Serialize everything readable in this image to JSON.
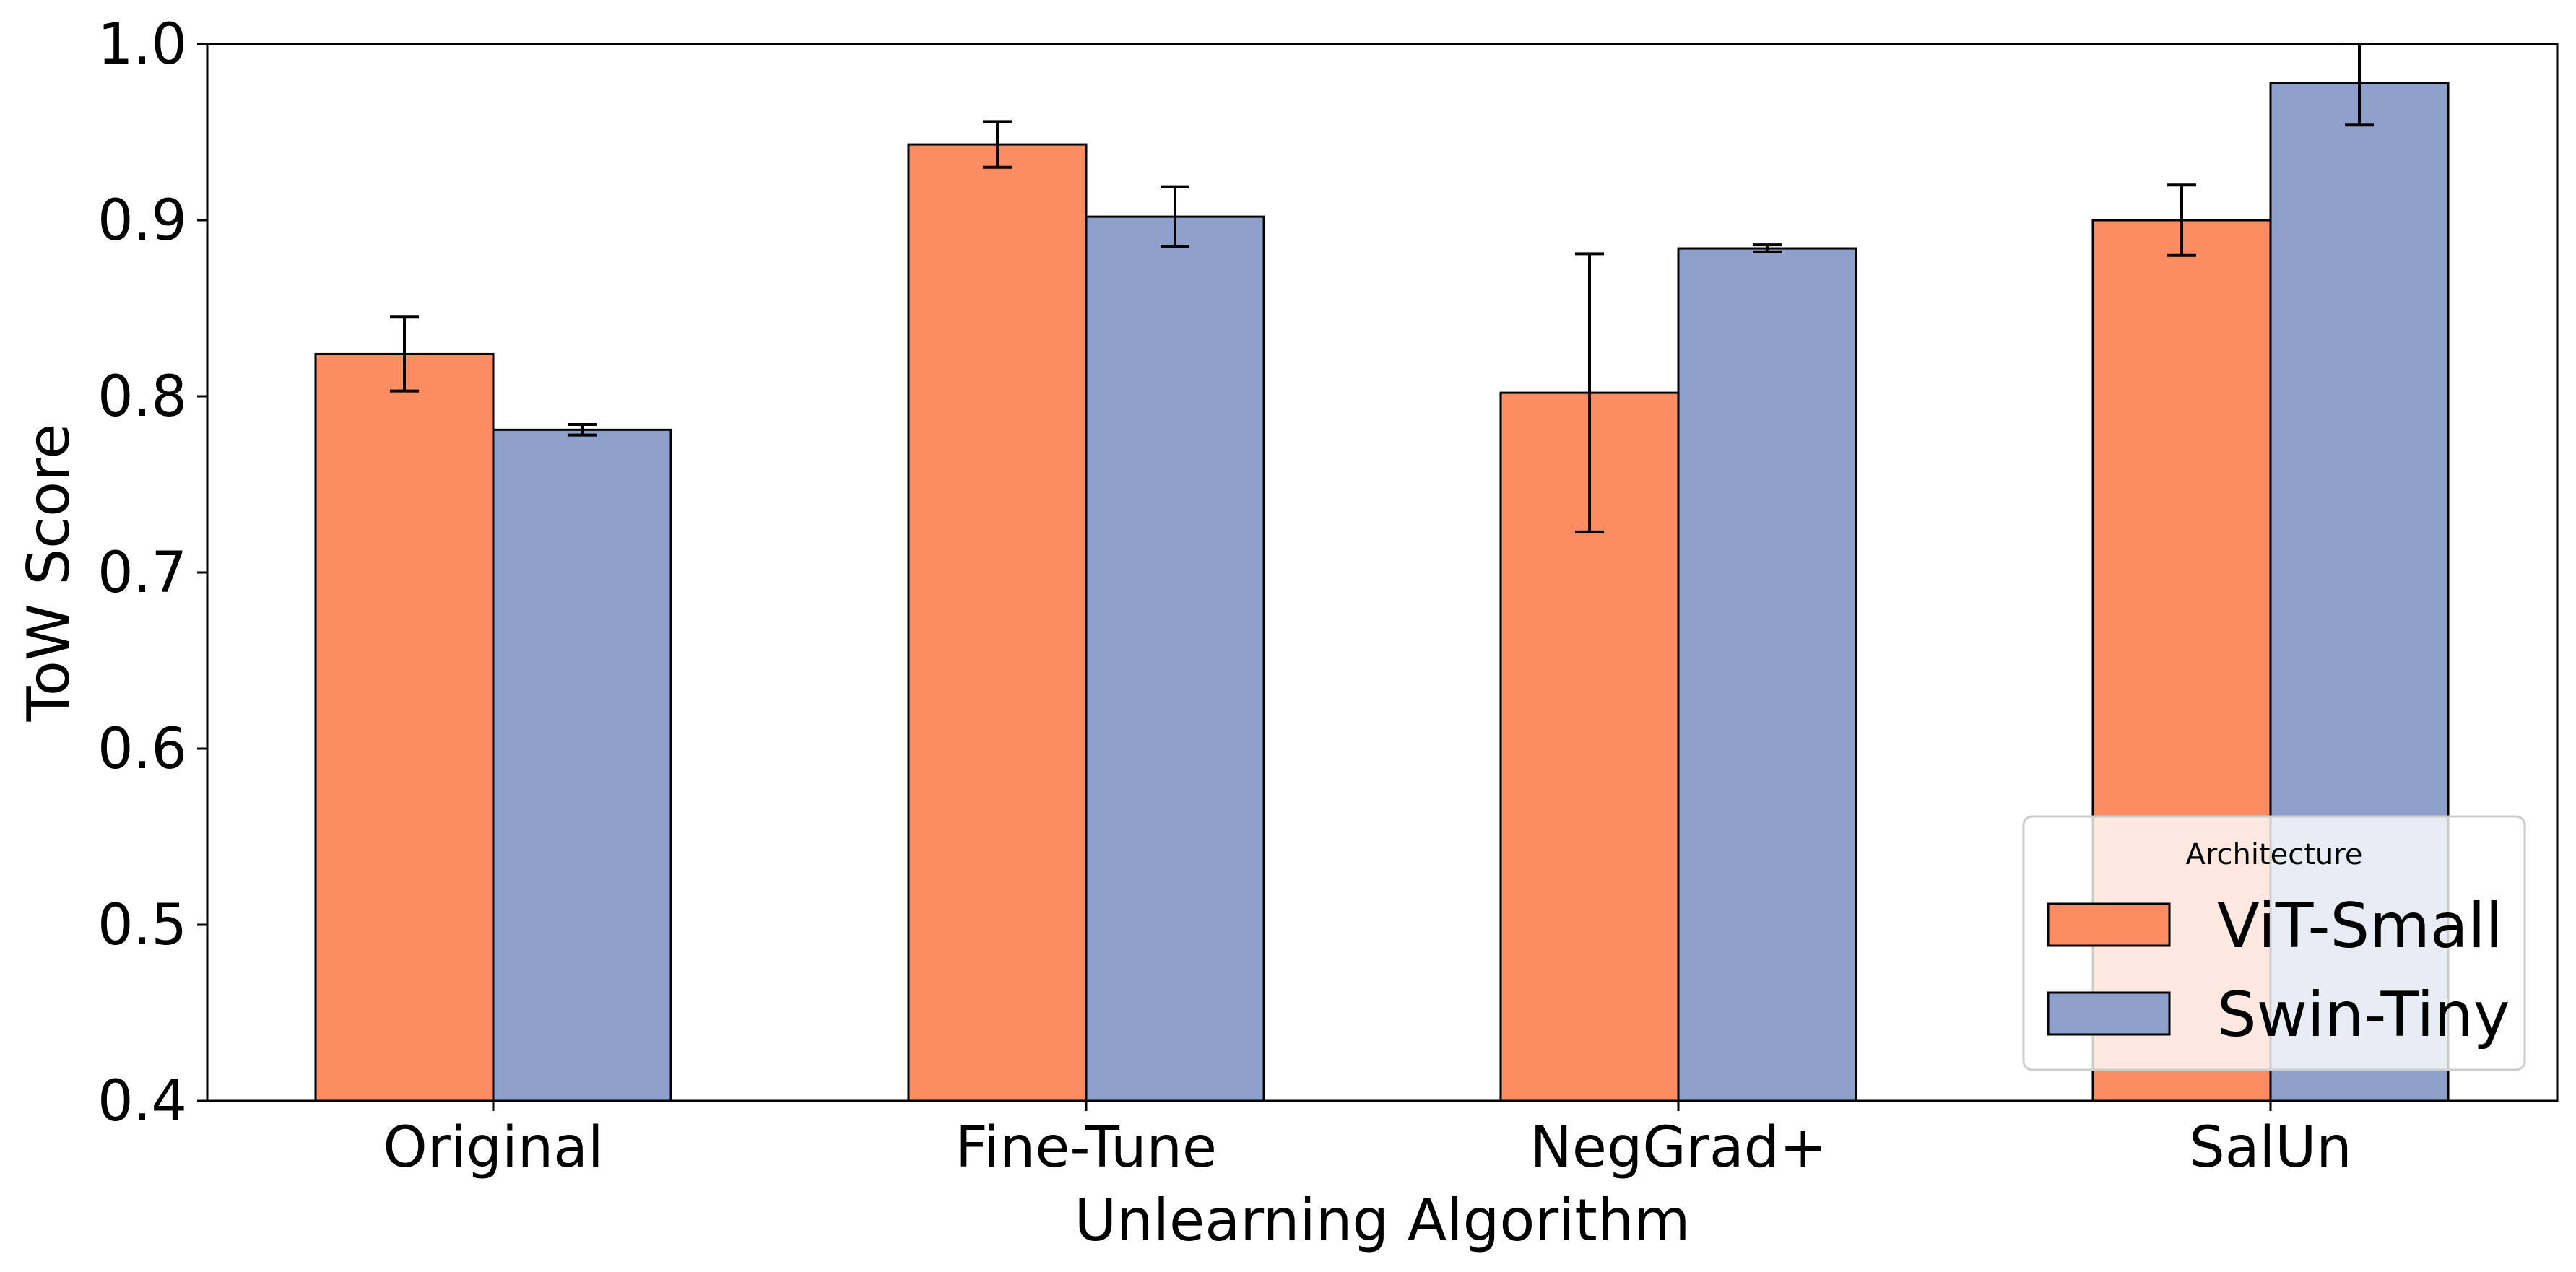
{
  "chart_data": {
    "type": "bar",
    "xlabel": "Unlearning Algorithm",
    "ylabel": "ToW Score",
    "ylim": [
      0.4,
      1.0
    ],
    "yticks": [
      "0.4",
      "0.5",
      "0.6",
      "0.7",
      "0.8",
      "0.9",
      "1.0"
    ],
    "categories": [
      "Original",
      "Fine-Tune",
      "NegGrad+",
      "SalUn"
    ],
    "series": [
      {
        "name": "ViT-Small",
        "color": "#fc8d62",
        "values": [
          0.824,
          0.943,
          0.802,
          0.9
        ],
        "errors": [
          0.021,
          0.013,
          0.079,
          0.02
        ]
      },
      {
        "name": "Swin-Tiny",
        "color": "#8da0cb",
        "values": [
          0.781,
          0.902,
          0.884,
          0.978
        ],
        "errors": [
          0.003,
          0.017,
          0.002,
          0.024
        ]
      }
    ],
    "legend": {
      "title": "Architecture",
      "position": "lower-right"
    },
    "grid": false
  }
}
